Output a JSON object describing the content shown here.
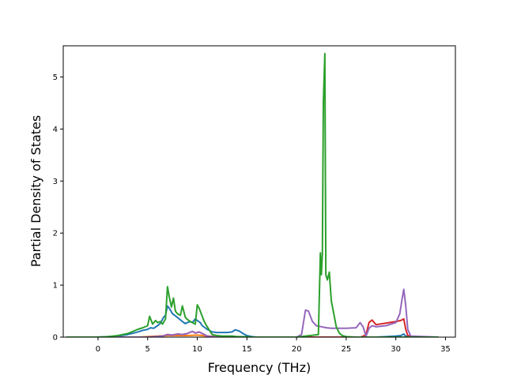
{
  "chart_data": {
    "type": "line",
    "title": "",
    "xlabel": "Frequency (THz)",
    "ylabel": "Partial Density of States",
    "xlim": [
      -3.5,
      36
    ],
    "ylim": [
      0,
      5.6
    ],
    "x_ticks": [
      0,
      5,
      10,
      15,
      20,
      25,
      30,
      35
    ],
    "y_ticks": [
      0,
      1,
      2,
      3,
      4,
      5
    ],
    "grid": false,
    "legend": "none",
    "series": [
      {
        "color": "#1f77b4",
        "x": [
          -3.2,
          0,
          1,
          2,
          3,
          4,
          4.5,
          5,
          5.3,
          5.6,
          6,
          6.3,
          6.6,
          6.8,
          7,
          7.2,
          7.5,
          8,
          8.5,
          8.8,
          9,
          9.3,
          9.5,
          9.8,
          10,
          10.3,
          10.5,
          11,
          11.5,
          12,
          12.5,
          13,
          13.5,
          13.8,
          14.2,
          14.6,
          15,
          15.5,
          16,
          20,
          25,
          28,
          29,
          30,
          30.5,
          30.8,
          31,
          31.3,
          32,
          34.3
        ],
        "y": [
          0,
          0,
          0.01,
          0.02,
          0.05,
          0.1,
          0.13,
          0.15,
          0.18,
          0.17,
          0.22,
          0.27,
          0.38,
          0.42,
          0.6,
          0.55,
          0.45,
          0.38,
          0.3,
          0.26,
          0.28,
          0.3,
          0.28,
          0.35,
          0.32,
          0.28,
          0.22,
          0.15,
          0.1,
          0.09,
          0.09,
          0.09,
          0.1,
          0.14,
          0.12,
          0.07,
          0.03,
          0.01,
          0,
          0,
          0,
          0,
          0.01,
          0.02,
          0.03,
          0.06,
          0.02,
          0.01,
          0,
          0
        ]
      },
      {
        "color": "#ff7f0e",
        "x": [
          -3.2,
          0,
          2,
          4,
          5,
          6,
          7,
          8,
          9,
          10,
          11,
          12,
          13,
          15,
          20,
          25,
          30,
          34.3
        ],
        "y": [
          0,
          0,
          0,
          0,
          0.01,
          0.02,
          0.03,
          0.03,
          0.03,
          0.04,
          0.02,
          0.01,
          0,
          0,
          0,
          0,
          0,
          0
        ]
      },
      {
        "color": "#d62728",
        "x": [
          -3.2,
          0,
          5,
          6.5,
          7,
          7.5,
          8,
          8.5,
          9,
          9.5,
          9.8,
          10.2,
          10.5,
          11,
          12,
          15,
          20,
          26.5,
          27,
          27.3,
          27.6,
          28,
          29,
          30,
          30.5,
          30.8,
          31,
          31.2,
          32,
          34.3
        ],
        "y": [
          0,
          0,
          0,
          0.02,
          0.05,
          0.04,
          0.06,
          0.05,
          0.07,
          0.11,
          0.08,
          0.1,
          0.07,
          0.02,
          0,
          0,
          0,
          0,
          0.05,
          0.28,
          0.33,
          0.24,
          0.27,
          0.3,
          0.32,
          0.35,
          0.15,
          0.03,
          0,
          0
        ]
      },
      {
        "color": "#9467bd",
        "x": [
          -3.2,
          0,
          5,
          6.5,
          7,
          7.5,
          8,
          8.5,
          9,
          9.5,
          9.8,
          10.2,
          10.5,
          11,
          12,
          20,
          20.5,
          20.9,
          21.2,
          21.6,
          22,
          22.5,
          23,
          23.5,
          24,
          25,
          26,
          26.4,
          26.7,
          27,
          27.3,
          27.6,
          28,
          29,
          30,
          30.4,
          30.6,
          30.8,
          31,
          31.2,
          31.5,
          34.3
        ],
        "y": [
          0,
          0,
          0,
          0.02,
          0.05,
          0.04,
          0.06,
          0.05,
          0.07,
          0.11,
          0.08,
          0.1,
          0.07,
          0.02,
          0,
          0,
          0.05,
          0.52,
          0.5,
          0.3,
          0.22,
          0.2,
          0.18,
          0.17,
          0.17,
          0.17,
          0.18,
          0.28,
          0.2,
          0.02,
          0.17,
          0.22,
          0.2,
          0.22,
          0.28,
          0.45,
          0.7,
          0.92,
          0.6,
          0.15,
          0.02,
          0
        ]
      },
      {
        "color": "#2ca02c",
        "x": [
          -3.2,
          0,
          1,
          2,
          3,
          4,
          4.5,
          5,
          5.2,
          5.5,
          5.8,
          6,
          6.3,
          6.5,
          6.8,
          7,
          7.2,
          7.4,
          7.6,
          7.8,
          8,
          8.3,
          8.5,
          8.8,
          9,
          9.3,
          9.5,
          9.8,
          10,
          10.2,
          10.4,
          10.7,
          11,
          11.5,
          12,
          12.5,
          13,
          13.5,
          14,
          14.5,
          15,
          15.5,
          16,
          20,
          22.2,
          22.4,
          22.5,
          22.6,
          22.7,
          22.85,
          22.95,
          23.1,
          23.3,
          23.5,
          23.7,
          24,
          24.3,
          24.6,
          25,
          26,
          30,
          34.3
        ],
        "y": [
          0,
          0,
          0.01,
          0.03,
          0.07,
          0.15,
          0.18,
          0.22,
          0.4,
          0.25,
          0.32,
          0.28,
          0.3,
          0.25,
          0.35,
          0.97,
          0.75,
          0.58,
          0.75,
          0.5,
          0.45,
          0.42,
          0.6,
          0.38,
          0.34,
          0.3,
          0.28,
          0.25,
          0.62,
          0.55,
          0.45,
          0.3,
          0.2,
          0.05,
          0.03,
          0.02,
          0.02,
          0.02,
          0.01,
          0.01,
          0.01,
          0,
          0,
          0,
          0.05,
          1.62,
          1.2,
          1.6,
          4.5,
          5.45,
          1.2,
          1.1,
          1.25,
          0.7,
          0.5,
          0.2,
          0.08,
          0.03,
          0.01,
          0,
          0,
          0
        ]
      }
    ]
  }
}
